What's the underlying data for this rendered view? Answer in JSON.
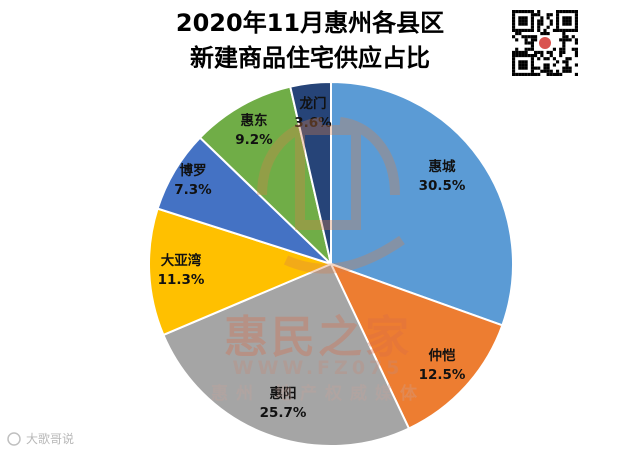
{
  "chart_data": {
    "type": "pie",
    "title_lines": [
      "2020年11月惠州各县区",
      "新建商品住宅供应占比"
    ],
    "slices": [
      {
        "label": "惠城",
        "value": 30.5,
        "value_label": "30.5%",
        "color": "#5b9bd5"
      },
      {
        "label": "仲恺",
        "value": 12.5,
        "value_label": "12.5%",
        "color": "#ed7d31"
      },
      {
        "label": "惠阳",
        "value": 25.7,
        "value_label": "25.7%",
        "color": "#a5a5a5"
      },
      {
        "label": "大亚湾",
        "value": 11.3,
        "value_label": "11.3%",
        "color": "#ffc000"
      },
      {
        "label": "博罗",
        "value": 7.3,
        "value_label": "7.3%",
        "color": "#4472c4"
      },
      {
        "label": "惠东",
        "value": 9.2,
        "value_label": "9.2%",
        "color": "#70ad47"
      },
      {
        "label": "龙门",
        "value": 3.6,
        "value_label": "3.6%",
        "color": "#264478"
      }
    ],
    "start_angle_deg": 0,
    "direction": "clockwise"
  },
  "watermark": {
    "brand": "惠民之家",
    "url": "WWW.FZ075",
    "tagline": "惠州 地产权威媒体"
  },
  "corner_logo": "大歌哥说",
  "qr_icon": "qr-code-icon"
}
